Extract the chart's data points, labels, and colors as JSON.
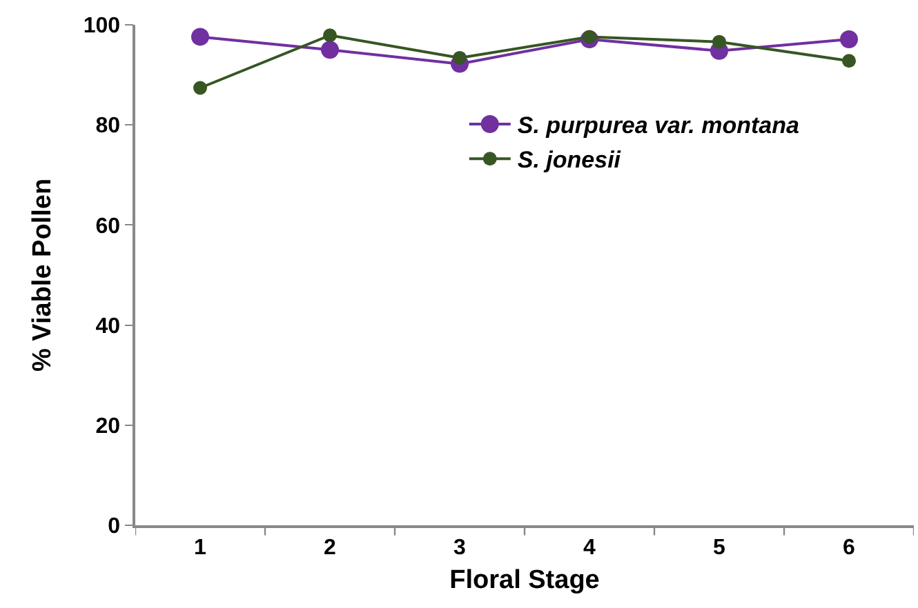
{
  "chart_data": {
    "type": "line",
    "xlabel": "Floral Stage",
    "ylabel": "% Viable Pollen",
    "categories": [
      "1",
      "2",
      "3",
      "4",
      "5",
      "6"
    ],
    "series": [
      {
        "name": "S. purpurea var. montana",
        "color": "#7030a0",
        "values": [
          97.6,
          95,
          92.2,
          97.1,
          94.8,
          97.1
        ]
      },
      {
        "name": "S. jonesii",
        "color": "#375623",
        "values": [
          87.4,
          97.9,
          93.4,
          97.6,
          96.6,
          92.8
        ]
      }
    ],
    "ylim": [
      0,
      100
    ],
    "yticks": [
      0,
      20,
      40,
      60,
      80,
      100
    ],
    "grid": false,
    "legend": "top right",
    "marker": "circle",
    "line_style": "solid"
  }
}
